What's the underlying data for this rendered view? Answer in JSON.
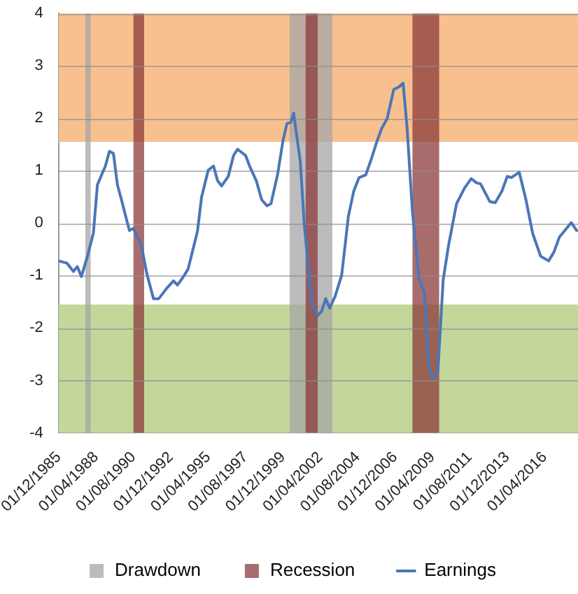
{
  "chart_data": {
    "type": "line",
    "x": [
      "1985-12",
      "1986-06",
      "1986-11",
      "1987-02",
      "1987-05",
      "1987-10",
      "1988-02",
      "1988-05",
      "1988-11",
      "1989-02",
      "1989-05",
      "1989-08",
      "1989-11",
      "1990-03",
      "1990-05",
      "1990-08",
      "1991-02",
      "1991-06",
      "1991-11",
      "1992-03",
      "1992-09",
      "1993-02",
      "1993-05",
      "1993-10",
      "1994-01",
      "1994-08",
      "1994-11",
      "1995-04",
      "1995-08",
      "1995-11",
      "1996-02",
      "1996-07",
      "1996-11",
      "1997-02",
      "1997-08",
      "1997-11",
      "1998-04",
      "1998-08",
      "1998-12",
      "1999-03",
      "1999-08",
      "1999-12",
      "2000-03",
      "2000-06",
      "2000-08",
      "2001-01",
      "2001-04",
      "2001-07",
      "2001-10",
      "2002-02",
      "2002-05",
      "2002-08",
      "2002-11",
      "2003-03",
      "2003-08",
      "2004-01",
      "2004-05",
      "2004-09",
      "2005-02",
      "2005-06",
      "2005-10",
      "2006-02",
      "2006-06",
      "2006-11",
      "2007-03",
      "2007-06",
      "2007-09",
      "2008-01",
      "2008-06",
      "2008-10",
      "2009-01",
      "2009-04",
      "2009-08",
      "2009-12",
      "2010-04",
      "2010-10",
      "2011-04",
      "2011-09",
      "2012-01",
      "2012-04",
      "2012-11",
      "2013-03",
      "2013-08",
      "2013-12",
      "2014-03",
      "2014-09",
      "2015-02",
      "2015-07",
      "2016-01",
      "2016-07",
      "2016-11",
      "2017-03",
      "2017-12",
      "2018-04"
    ],
    "series": [
      {
        "name": "Earnings",
        "color": "#4a76b8",
        "values": [
          -0.72,
          -0.76,
          -0.92,
          -0.83,
          -1.02,
          -0.59,
          -0.19,
          0.73,
          1.09,
          1.37,
          1.33,
          0.73,
          0.45,
          0.05,
          -0.14,
          -0.1,
          -0.43,
          -0.96,
          -1.44,
          -1.44,
          -1.24,
          -1.1,
          -1.18,
          -1.0,
          -0.87,
          -0.15,
          0.49,
          1.01,
          1.09,
          0.81,
          0.71,
          0.89,
          1.29,
          1.41,
          1.29,
          1.09,
          0.81,
          0.45,
          0.33,
          0.37,
          0.93,
          1.57,
          1.9,
          1.93,
          2.1,
          1.17,
          -0.03,
          -0.84,
          -1.56,
          -1.76,
          -1.68,
          -1.44,
          -1.62,
          -1.4,
          -0.99,
          0.13,
          0.61,
          0.87,
          0.92,
          1.21,
          1.53,
          1.81,
          1.99,
          2.55,
          2.6,
          2.67,
          1.81,
          0.21,
          -1.08,
          -1.32,
          -2.68,
          -2.96,
          -2.84,
          -1.08,
          -0.43,
          0.37,
          0.67,
          0.85,
          0.77,
          0.75,
          0.41,
          0.39,
          0.61,
          0.89,
          0.87,
          0.97,
          0.45,
          -0.19,
          -0.63,
          -0.72,
          -0.55,
          -0.27,
          0.01,
          -0.14
        ]
      }
    ],
    "xlim": [
      "1985-12",
      "2018-05"
    ],
    "xticks": [
      {
        "value": "1985-12",
        "label": "01/12/1985"
      },
      {
        "value": "1988-04",
        "label": "01/04/1988"
      },
      {
        "value": "1990-08",
        "label": "01/08/1990"
      },
      {
        "value": "1992-12",
        "label": "01/12/1992"
      },
      {
        "value": "1995-04",
        "label": "01/04/1995"
      },
      {
        "value": "1997-08",
        "label": "01/08/1997"
      },
      {
        "value": "1999-12",
        "label": "01/12/1999"
      },
      {
        "value": "2002-04",
        "label": "01/04/2002"
      },
      {
        "value": "2004-08",
        "label": "01/08/2004"
      },
      {
        "value": "2006-12",
        "label": "01/12/2006"
      },
      {
        "value": "2009-04",
        "label": "01/04/2009"
      },
      {
        "value": "2011-08",
        "label": "01/08/2011"
      },
      {
        "value": "2013-12",
        "label": "01/12/2013"
      },
      {
        "value": "2016-04",
        "label": "01/04/2016"
      }
    ],
    "ylim": [
      -4,
      4
    ],
    "yticks": [
      -4,
      -3,
      -2,
      -1,
      0,
      1,
      2,
      3,
      4
    ],
    "bands": [
      {
        "axis": "y",
        "from": 1.55,
        "to": 4,
        "color": "#f8c08e"
      },
      {
        "axis": "y",
        "from": -4,
        "to": -1.55,
        "color": "#c4d79b"
      },
      {
        "axis": "x",
        "from": "1987-08",
        "to": "1987-12",
        "label": "Drawdown",
        "color": "#a6a6a6"
      },
      {
        "axis": "x",
        "from": "2000-05",
        "to": "2003-01",
        "color": "#a6a6a6"
      },
      {
        "axis": "x",
        "from": "1990-08",
        "to": "1991-04",
        "label": "Recession",
        "color": "#8c3b3b"
      },
      {
        "axis": "x",
        "from": "2001-05",
        "to": "2002-02",
        "color": "#8c3b3b"
      },
      {
        "axis": "x",
        "from": "2008-01",
        "to": "2009-09",
        "color": "#8c3b3b"
      }
    ],
    "grid": "y",
    "legend": "bottom",
    "marker": "none",
    "line_style": "solid"
  }
}
